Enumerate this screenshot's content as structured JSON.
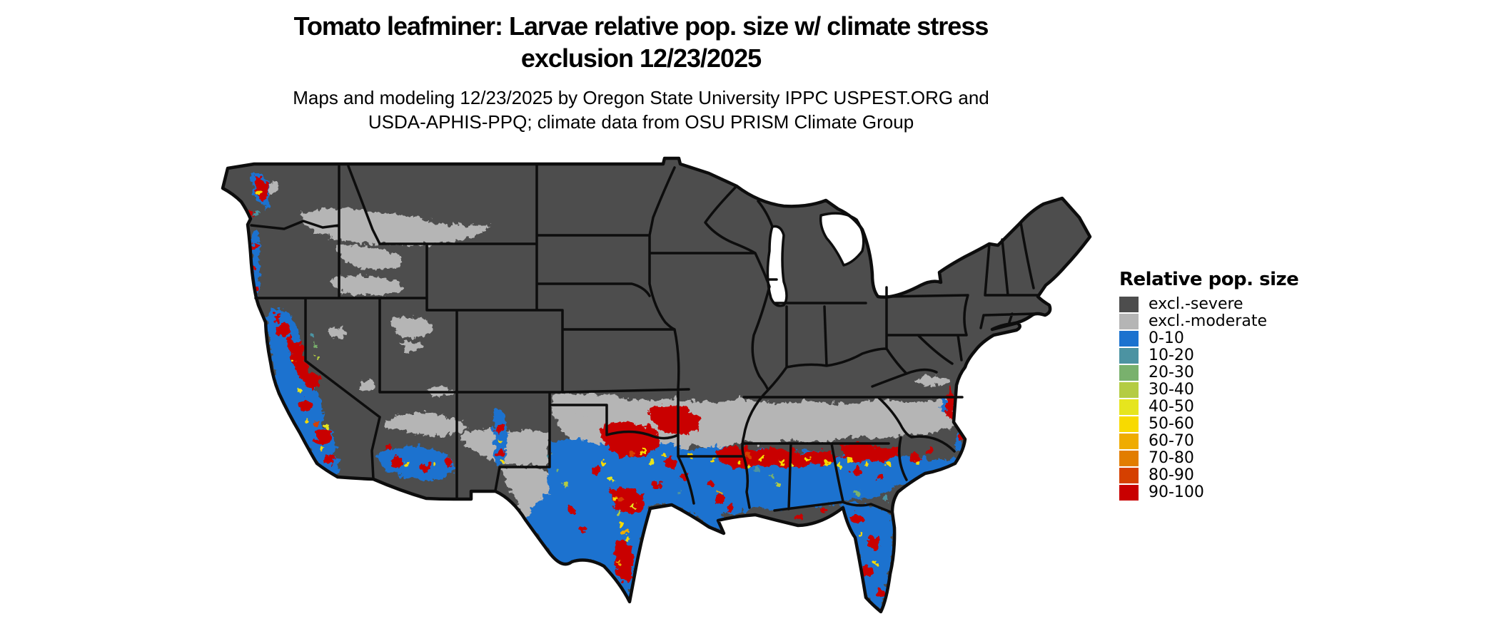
{
  "header": {
    "title_line1": "Tomato leafminer: Larvae relative pop. size w/ climate stress",
    "title_line2": "exclusion 12/23/2025",
    "subtitle_line1": "Maps and modeling 12/23/2025 by Oregon State University IPPC USPEST.ORG and",
    "subtitle_line2": "USDA-APHIS-PPQ; climate data from OSU PRISM Climate Group"
  },
  "legend": {
    "title": "Relative pop. size",
    "items": [
      {
        "label": "excl.-severe",
        "color": "#4d4d4d"
      },
      {
        "label": "excl.-moderate",
        "color": "#b5b5b5"
      },
      {
        "label": "0-10",
        "color": "#1b72cf"
      },
      {
        "label": "10-20",
        "color": "#4c93a2"
      },
      {
        "label": "20-30",
        "color": "#79b16d"
      },
      {
        "label": "30-40",
        "color": "#b4cc43"
      },
      {
        "label": "40-50",
        "color": "#e6e51e"
      },
      {
        "label": "50-60",
        "color": "#f8da00"
      },
      {
        "label": "60-70",
        "color": "#efac00"
      },
      {
        "label": "70-80",
        "color": "#e27d00"
      },
      {
        "label": "80-90",
        "color": "#d54000"
      },
      {
        "label": "90-100",
        "color": "#c90000"
      }
    ]
  },
  "map": {
    "border_color": "#0d0d0d",
    "water_color": "#ffffff"
  }
}
